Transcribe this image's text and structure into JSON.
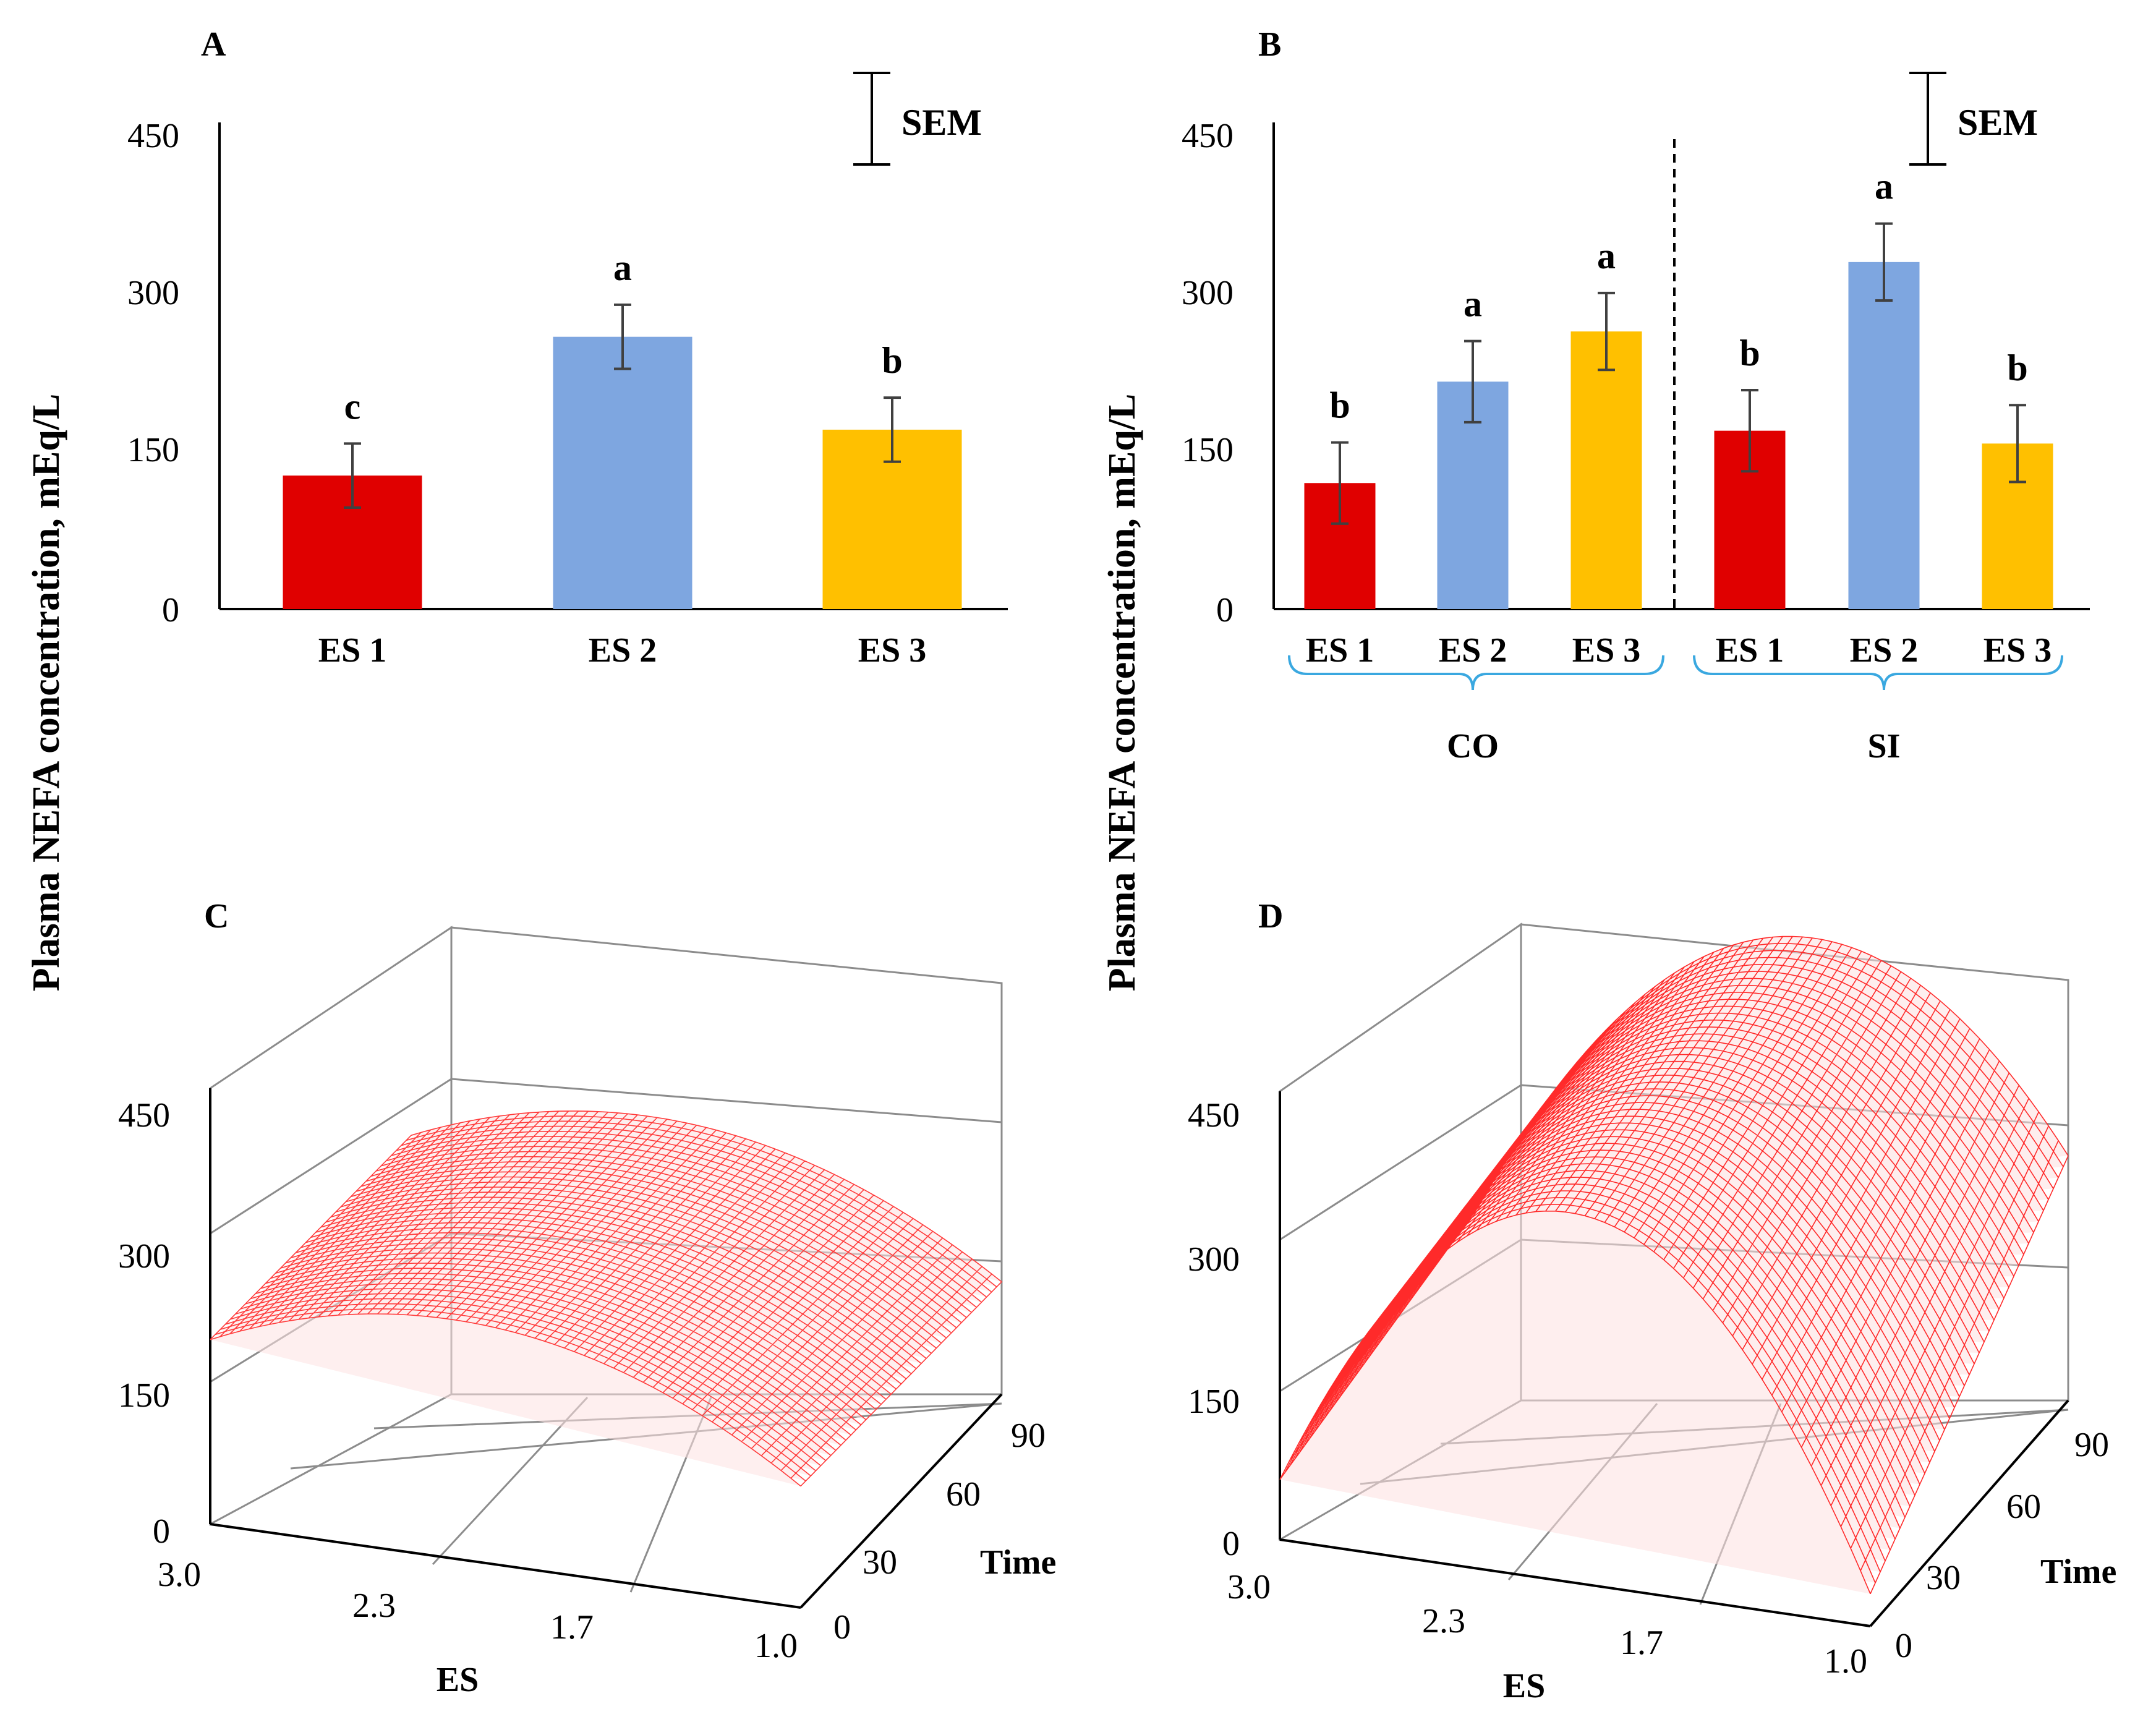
{
  "figure": {
    "y_axis_label": "Plasma NEFA concentration, mEq/L",
    "sem_label": "SEM"
  },
  "chart_data": [
    {
      "id": "A",
      "panel_label": "A",
      "type": "bar",
      "categories": [
        "ES 1",
        "ES 2",
        "ES 3"
      ],
      "values": [
        125,
        255,
        168
      ],
      "error": [
        30,
        30,
        30
      ],
      "significance_letters": [
        "c",
        "a",
        "b"
      ],
      "colors": [
        "#e00000",
        "#7ea6e0",
        "#ffc000"
      ],
      "yticks": [
        "0",
        "150",
        "300",
        "450"
      ],
      "ylim": [
        0,
        450
      ],
      "ylabel": "Plasma NEFA concentration, mEq/L"
    },
    {
      "id": "B",
      "panel_label": "B",
      "type": "bar",
      "categories": [
        "ES 1",
        "ES 2",
        "ES 3",
        "ES 1",
        "ES 2",
        "ES 3"
      ],
      "groups": [
        "CO",
        "SI"
      ],
      "values": [
        118,
        213,
        260,
        167,
        325,
        155
      ],
      "error": [
        38,
        38,
        36,
        38,
        36,
        36
      ],
      "significance_letters": [
        "b",
        "a",
        "a",
        "b",
        "a",
        "b"
      ],
      "colors": [
        "#e00000",
        "#7ea6e0",
        "#ffc000",
        "#e00000",
        "#7ea6e0",
        "#ffc000"
      ],
      "yticks": [
        "0",
        "150",
        "300",
        "450"
      ],
      "ylim": [
        0,
        450
      ],
      "ylabel": "Plasma NEFA concentration, mEq/L"
    },
    {
      "id": "C",
      "panel_label": "C",
      "type": "surface",
      "zticks": [
        "0",
        "150",
        "300",
        "450"
      ],
      "es_ticks": [
        "3.0",
        "2.3",
        "1.7",
        "1.0"
      ],
      "time_ticks": [
        "0",
        "30",
        "60",
        "90"
      ],
      "es_label": "ES",
      "time_label": "Time",
      "zlim": [
        0,
        450
      ],
      "es_range": [
        1.0,
        3.0
      ],
      "time_range": [
        0,
        90
      ],
      "surface_samples": [
        {
          "es": 3.0,
          "time": 0,
          "z": 205
        },
        {
          "es": 2.0,
          "time": 0,
          "z": 262
        },
        {
          "es": 1.0,
          "time": 0,
          "z": 135
        },
        {
          "es": 3.0,
          "time": 90,
          "z": 195
        },
        {
          "es": 2.0,
          "time": 90,
          "z": 250
        },
        {
          "es": 1.0,
          "time": 90,
          "z": 125
        }
      ],
      "surface_color": "#ff4040"
    },
    {
      "id": "D",
      "panel_label": "D",
      "type": "surface",
      "zticks": [
        "0",
        "150",
        "300",
        "450"
      ],
      "es_ticks": [
        "3.0",
        "2.3",
        "1.7",
        "1.0"
      ],
      "time_ticks": [
        "0",
        "30",
        "60",
        "90"
      ],
      "es_label": "ES",
      "time_label": "Time",
      "zlim": [
        0,
        450
      ],
      "es_range": [
        1.0,
        3.0
      ],
      "time_range": [
        0,
        90
      ],
      "surface_samples": [
        {
          "es": 3.0,
          "time": 0,
          "z": 65
        },
        {
          "es": 2.0,
          "time": 0,
          "z": 400
        },
        {
          "es": 1.0,
          "time": 0,
          "z": 35
        },
        {
          "es": 3.0,
          "time": 90,
          "z": 115
        },
        {
          "es": 2.0,
          "time": 90,
          "z": 455
        },
        {
          "es": 1.0,
          "time": 90,
          "z": 265
        }
      ],
      "surface_color": "#ff3030"
    }
  ]
}
